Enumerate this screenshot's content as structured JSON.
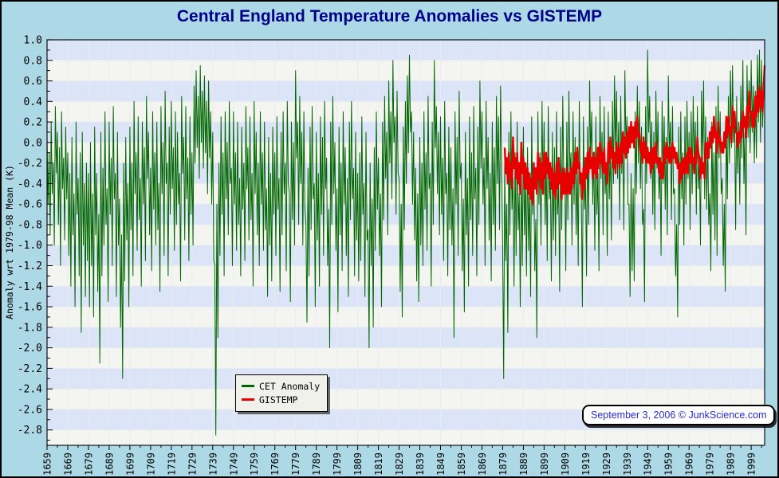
{
  "title": "Central England Temperature Anomalies vs GISTEMP",
  "datestamp": "September 3, 2006 © JunkScience.com",
  "colors": {
    "background": "#ADD8E6",
    "stripe_blue": "#dce4f7",
    "stripe_white": "#f4f4f0",
    "gridline": "#e9ebef",
    "frame": "#111111",
    "title_text": "#00008B",
    "datestamp_text": "#2b2bc8",
    "cet_green": "#006600",
    "gistemp_red": "#e60000"
  },
  "legend": {
    "items": [
      {
        "label": "CET Anomaly",
        "color": "#006600"
      },
      {
        "label": "GISTEMP",
        "color": "#e60000"
      }
    ]
  },
  "chart_data": {
    "type": "line",
    "title": "Central England Temperature Anomalies vs GISTEMP",
    "ylabel": "Anomaly wrt 1979-98 Mean (K)",
    "xlabel": "",
    "xlim": [
      1659,
      2005.5
    ],
    "ylim": [
      -2.95,
      1.0
    ],
    "grid": true,
    "legend_position": "bottom-center-left",
    "x_tick_interval": 10,
    "x_minor_interval": 5,
    "y_tick_interval": 0.2,
    "y_minor_interval": 0.1,
    "x_ticks": [
      "1659",
      "1669",
      "1679",
      "1689",
      "1699",
      "1709",
      "1719",
      "1729",
      "1739",
      "1749",
      "1759",
      "1769",
      "1779",
      "1789",
      "1799",
      "1809",
      "1819",
      "1829",
      "1839",
      "1849",
      "1859",
      "1869",
      "1879",
      "1889",
      "1899",
      "1909",
      "1919",
      "1929",
      "1939",
      "1949",
      "1959",
      "1969",
      "1979",
      "1989",
      "1999"
    ],
    "y_ticks": [
      "1.0",
      "0.8",
      "0.6",
      "0.4",
      "0.2",
      "0.0",
      "-0.2",
      "-0.4",
      "-0.6",
      "-0.8",
      "-1.0",
      "-1.2",
      "-1.4",
      "-1.6",
      "-1.8",
      "-2.0",
      "-2.2",
      "-2.4",
      "-2.6",
      "-2.8"
    ],
    "series": [
      {
        "name": "CET Anomaly",
        "color": "#006600",
        "stroke_width": 1,
        "start_year": 1659,
        "points_per_year": 2,
        "values": [
          0.05,
          -0.6,
          -0.1,
          -0.9,
          0.2,
          -0.5,
          -0.2,
          -1.0,
          0.35,
          -0.3,
          0.1,
          -0.8,
          -0.05,
          -1.2,
          0.3,
          -0.45,
          -0.15,
          -0.95,
          0.15,
          -0.55,
          -0.1,
          -1.1,
          -0.3,
          -1.4,
          0.05,
          -0.9,
          -0.5,
          -1.6,
          0.2,
          -0.7,
          -0.35,
          -1.3,
          -0.1,
          -1.85,
          0.1,
          -1.0,
          -0.4,
          -1.5,
          -0.2,
          -1.15,
          -0.3,
          -1.6,
          0.0,
          -1.2,
          -0.5,
          -1.7,
          0.15,
          -0.9,
          -0.3,
          -1.45,
          -0.7,
          -2.15,
          0.1,
          -1.3,
          -0.25,
          -1.0,
          0.3,
          -0.8,
          -0.45,
          -1.55,
          0.2,
          -0.7,
          -0.15,
          -1.2,
          0.35,
          -0.55,
          -0.3,
          -1.5,
          0.1,
          -1.0,
          -0.55,
          -1.8,
          -0.9,
          -2.3,
          -0.2,
          -1.35,
          0.05,
          -0.95,
          -0.4,
          -1.6,
          0.15,
          -0.85,
          -0.2,
          -1.3,
          0.4,
          -0.5,
          -0.1,
          -1.05,
          0.25,
          -0.75,
          -0.35,
          -1.4,
          0.2,
          -0.6,
          -0.05,
          -1.15,
          0.45,
          -0.35,
          0.1,
          -0.9,
          -0.25,
          -1.25,
          0.3,
          -0.65,
          -0.1,
          -1.0,
          0.2,
          -0.85,
          -0.4,
          -1.45,
          0.35,
          -0.5,
          0.0,
          -1.1,
          0.5,
          -0.4,
          -0.2,
          -1.3,
          0.15,
          -0.7,
          0.4,
          -0.45,
          -0.05,
          -1.05,
          0.3,
          -0.8,
          0.1,
          -0.6,
          -0.3,
          -1.35,
          0.45,
          -0.3,
          0.05,
          -0.95,
          0.35,
          -0.55,
          -0.15,
          -1.15,
          0.25,
          -0.7,
          -0.1,
          -1.0,
          0.55,
          -0.2,
          0.7,
          -0.05,
          0.45,
          -0.35,
          0.75,
          0.0,
          0.5,
          -0.25,
          0.65,
          -0.1,
          0.4,
          -0.5,
          0.6,
          -0.15,
          0.3,
          -0.6,
          0.1,
          -1.15,
          -1.2,
          -2.85,
          -0.6,
          -1.9,
          -0.2,
          -1.1,
          0.25,
          -0.7,
          -0.1,
          -1.3,
          0.3,
          -0.55,
          0.0,
          -0.9,
          0.4,
          -0.4,
          -0.25,
          -1.2,
          0.3,
          -0.6,
          -0.1,
          -1.05,
          0.2,
          -0.8,
          -0.35,
          -1.3,
          0.15,
          -0.65,
          -0.2,
          -1.15,
          0.35,
          -0.45,
          -0.05,
          -0.95,
          0.25,
          -0.75,
          -0.3,
          -1.4,
          0.4,
          -0.5,
          0.1,
          -0.9,
          -0.2,
          -1.2,
          0.3,
          -0.6,
          -0.1,
          -1.05,
          0.2,
          -0.85,
          -0.45,
          -1.5,
          0.05,
          -1.0,
          -0.3,
          -1.35,
          0.15,
          -0.7,
          -0.1,
          -1.1,
          0.25,
          -0.65,
          -0.35,
          -1.45,
          0.1,
          -0.9,
          0.3,
          -0.5,
          -0.2,
          -1.25,
          0.4,
          -0.4,
          -0.5,
          -1.55,
          0.2,
          -0.75,
          0.0,
          -1.0,
          0.7,
          -0.15,
          0.2,
          -0.8,
          0.45,
          -0.4,
          0.1,
          -1.0,
          0.3,
          -0.65,
          -0.8,
          -1.75,
          -0.25,
          -1.3,
          0.15,
          -0.85,
          0.35,
          -0.55,
          -0.4,
          -1.6,
          0.1,
          -0.95,
          -0.3,
          -1.4,
          0.25,
          -0.7,
          0.05,
          -1.1,
          0.4,
          -0.45,
          -0.15,
          -1.2,
          -0.65,
          -2.0,
          0.2,
          -0.8,
          0.45,
          -0.5,
          0.0,
          -1.05,
          -0.45,
          -1.65,
          0.15,
          -0.9,
          -0.2,
          -1.25,
          0.3,
          -0.6,
          -0.05,
          -1.1,
          -0.35,
          -1.5,
          0.2,
          -0.75,
          0.4,
          -0.55,
          -0.25,
          -1.3,
          0.1,
          -0.95,
          -0.3,
          -1.35,
          -0.1,
          -1.15,
          0.25,
          -0.7,
          -0.4,
          -1.5,
          0.1,
          -0.95,
          -0.85,
          -2.0,
          -0.2,
          -1.2,
          -0.55,
          -1.8,
          -0.05,
          -1.05,
          0.3,
          -0.65,
          -0.15,
          -1.1,
          -0.5,
          -1.6,
          0.2,
          -0.75,
          0.45,
          -0.35,
          0.1,
          -0.9,
          0.6,
          -0.2,
          0.3,
          -0.55,
          0.8,
          0.0,
          0.25,
          -0.7,
          0.5,
          -0.3,
          -0.35,
          -1.45,
          -0.6,
          -1.7,
          0.15,
          -0.85,
          0.4,
          -0.4,
          0.65,
          -0.1,
          0.85,
          0.1,
          0.3,
          -0.6,
          0.1,
          -0.95,
          -0.25,
          -1.35,
          -0.5,
          -1.55,
          0.05,
          -1.0,
          -0.2,
          -1.2,
          0.3,
          -0.65,
          -0.1,
          -1.05,
          0.45,
          -0.45,
          -0.3,
          -1.4,
          0.2,
          -0.8,
          0.8,
          -0.05,
          0.35,
          -0.5,
          0.1,
          -0.9,
          0.25,
          -0.7,
          -0.15,
          -1.15,
          0.4,
          -0.5,
          -0.3,
          -1.3,
          0.15,
          -0.85,
          -0.05,
          -1.0,
          -0.45,
          -1.9,
          0.3,
          -0.6,
          0.05,
          -1.1,
          0.5,
          -0.35,
          -0.2,
          -1.25,
          -0.55,
          -1.65,
          0.1,
          -0.9,
          -0.35,
          -1.4,
          0.25,
          -0.75,
          -0.1,
          -1.1,
          0.35,
          -0.55,
          -0.25,
          -1.3,
          0.15,
          -0.8,
          0.6,
          -0.25,
          0.3,
          -0.6,
          -0.15,
          -1.2,
          0.4,
          -0.45,
          0.05,
          -0.95,
          -0.3,
          -1.35,
          0.2,
          -0.8,
          -0.05,
          -1.05,
          0.45,
          -0.4,
          0.25,
          -0.85,
          0.55,
          -0.3,
          -1.0,
          -2.3,
          -0.2,
          -1.15,
          -0.6,
          -1.85,
          0.1,
          -0.9,
          0.3,
          -0.65,
          -0.35,
          -1.4,
          -0.1,
          -1.1,
          0.2,
          -0.85,
          -0.5,
          -1.6,
          -0.25,
          -1.2,
          0.15,
          -0.9,
          -0.3,
          -1.3,
          -0.05,
          -1.05,
          -0.45,
          -1.5,
          0.25,
          -0.7,
          -0.2,
          -1.25,
          -0.75,
          -1.9,
          0.3,
          -0.6,
          -0.1,
          -1.0,
          0.4,
          -0.5,
          0.2,
          -0.8,
          -0.15,
          -1.15,
          0.35,
          -0.55,
          -0.3,
          -1.35,
          0.1,
          -0.95,
          -0.05,
          -1.1,
          0.3,
          -0.7,
          -0.4,
          -1.45,
          0.15,
          -0.85,
          0.45,
          -0.4,
          -0.25,
          -1.25,
          0.2,
          -0.75,
          0.5,
          -0.3,
          -0.1,
          -1.0,
          0.3,
          -0.6,
          0.05,
          -0.9,
          -0.2,
          -1.2,
          0.4,
          -0.5,
          -0.55,
          -1.6,
          0.25,
          -0.65,
          -0.35,
          -1.3,
          0.15,
          -0.8,
          0.6,
          -0.15,
          0.3,
          -0.6,
          -0.1,
          -1.05,
          0.25,
          -0.7,
          -0.3,
          -1.25,
          0.45,
          -0.35,
          0.1,
          -0.9,
          0.35,
          -0.5,
          -0.2,
          -1.1,
          0.3,
          -0.55,
          -0.05,
          -0.95,
          0.4,
          -0.4,
          0.65,
          -0.1,
          0.5,
          -0.35,
          0.2,
          -0.75,
          0.45,
          -0.3,
          0.1,
          -0.85,
          0.7,
          -0.05,
          0.25,
          -0.6,
          -0.6,
          -1.5,
          -0.3,
          -1.25,
          -0.45,
          -1.35,
          0.3,
          -0.5,
          0.55,
          -0.2,
          0.4,
          -0.45,
          0.15,
          -0.8,
          -0.65,
          -1.55,
          0.35,
          -0.4,
          0.9,
          0.1,
          0.45,
          -0.35,
          0.2,
          -0.7,
          0.1,
          -0.85,
          0.5,
          -0.25,
          0.3,
          -0.55,
          -0.2,
          -1.1,
          0.4,
          -0.4,
          0.25,
          -0.65,
          0.05,
          -0.9,
          0.65,
          -0.1,
          0.2,
          -0.75,
          0.35,
          -0.5,
          -0.45,
          -1.3,
          -0.8,
          -1.7,
          0.15,
          -0.8,
          0.3,
          -0.55,
          -0.1,
          -1.0,
          0.25,
          -0.6,
          0.4,
          -0.35,
          0.1,
          -0.85,
          0.3,
          -0.5,
          0.45,
          -0.3,
          0.2,
          -0.7,
          0.35,
          -0.45,
          -0.15,
          -1.0,
          0.5,
          -0.2,
          0.6,
          -0.55,
          0.25,
          -0.65,
          0.05,
          -0.8,
          -0.5,
          -1.25,
          0.2,
          -0.7,
          -0.1,
          -0.95,
          0.35,
          -1.1,
          0.55,
          -0.15,
          0.3,
          -0.5,
          -0.35,
          -1.2,
          -0.6,
          -1.45,
          0.25,
          -0.55,
          0.45,
          -0.2,
          0.7,
          -0.05,
          0.75,
          0.0,
          0.3,
          -0.85,
          0.45,
          -0.3,
          0.2,
          -0.6,
          0.55,
          -0.15,
          0.8,
          -0.4,
          0.1,
          -0.9,
          0.75,
          0.05,
          0.6,
          -0.1,
          0.8,
          0.1,
          0.55,
          -0.2,
          0.5,
          -0.15,
          0.85,
          0.2,
          0.9,
          0.0,
          0.8,
          0.15,
          0.45,
          0.78
        ]
      },
      {
        "name": "GISTEMP",
        "color": "#e60000",
        "stroke_width": 2.4,
        "start_year": 1880,
        "points_per_year": 2,
        "values": [
          -0.05,
          -0.3,
          -0.15,
          -0.4,
          -0.1,
          -0.35,
          -0.2,
          -0.45,
          0.05,
          -0.25,
          -0.15,
          -0.35,
          -0.1,
          -0.4,
          -0.2,
          -0.5,
          0.0,
          -0.3,
          -0.15,
          -0.45,
          -0.2,
          -0.45,
          -0.25,
          -0.5,
          -0.3,
          -0.55,
          -0.35,
          -0.6,
          -0.2,
          -0.45,
          -0.25,
          -0.5,
          -0.1,
          -0.35,
          -0.15,
          -0.45,
          -0.2,
          -0.5,
          -0.1,
          -0.35,
          -0.1,
          -0.3,
          -0.15,
          -0.35,
          -0.2,
          -0.45,
          -0.25,
          -0.5,
          -0.3,
          -0.55,
          -0.2,
          -0.45,
          -0.15,
          -0.4,
          -0.3,
          -0.55,
          -0.25,
          -0.5,
          -0.3,
          -0.5,
          -0.25,
          -0.5,
          -0.3,
          -0.5,
          -0.25,
          -0.45,
          -0.2,
          -0.4,
          -0.1,
          -0.3,
          -0.05,
          -0.25,
          -0.2,
          -0.4,
          -0.3,
          -0.55,
          -0.25,
          -0.45,
          -0.15,
          -0.35,
          -0.1,
          -0.3,
          -0.05,
          -0.25,
          -0.15,
          -0.35,
          -0.1,
          -0.3,
          -0.15,
          -0.35,
          -0.05,
          -0.25,
          0.0,
          -0.2,
          -0.1,
          -0.3,
          -0.05,
          -0.3,
          -0.2,
          -0.4,
          0.0,
          -0.2,
          0.05,
          -0.15,
          -0.05,
          -0.25,
          -0.1,
          -0.3,
          0.0,
          -0.2,
          -0.05,
          -0.25,
          0.0,
          -0.2,
          0.1,
          -0.1,
          0.05,
          -0.15,
          0.1,
          -0.1,
          0.15,
          -0.05,
          0.2,
          0.0,
          0.15,
          -0.05,
          0.2,
          0.05,
          0.25,
          0.05,
          0.1,
          -0.1,
          0.0,
          -0.2,
          0.05,
          -0.15,
          0.0,
          -0.2,
          -0.05,
          -0.2,
          -0.1,
          -0.3,
          -0.05,
          -0.25,
          -0.05,
          -0.2,
          0.0,
          -0.2,
          -0.15,
          -0.3,
          -0.15,
          -0.35,
          -0.2,
          -0.35,
          -0.05,
          -0.2,
          0.0,
          -0.15,
          -0.05,
          -0.2,
          -0.05,
          -0.2,
          0.0,
          -0.15,
          -0.05,
          -0.2,
          -0.1,
          -0.25,
          -0.2,
          -0.4,
          -0.2,
          -0.35,
          -0.15,
          -0.3,
          -0.15,
          -0.3,
          -0.1,
          -0.3,
          -0.05,
          -0.2,
          -0.05,
          -0.2,
          -0.15,
          -0.3,
          -0.1,
          -0.2,
          0.05,
          -0.1,
          -0.15,
          -0.35,
          -0.15,
          -0.3,
          -0.2,
          -0.35,
          0.0,
          -0.15,
          0.0,
          -0.15,
          0.1,
          -0.05,
          0.15,
          0.0,
          0.25,
          0.05,
          0.1,
          -0.1,
          0.2,
          0.0,
          0.05,
          -0.1,
          0.0,
          -0.1,
          0.1,
          -0.05,
          0.25,
          0.05,
          0.25,
          0.1,
          0.15,
          0.0,
          0.35,
          0.15,
          0.3,
          0.1,
          0.1,
          -0.05,
          0.1,
          0.0,
          0.2,
          0.05,
          0.3,
          0.15,
          0.25,
          0.05,
          0.35,
          0.15,
          0.5,
          0.3,
          0.3,
          0.15,
          0.3,
          0.15,
          0.45,
          0.25,
          0.5,
          0.3,
          0.55,
          0.35,
          0.5,
          0.3,
          0.55,
          0.75
        ]
      }
    ]
  }
}
